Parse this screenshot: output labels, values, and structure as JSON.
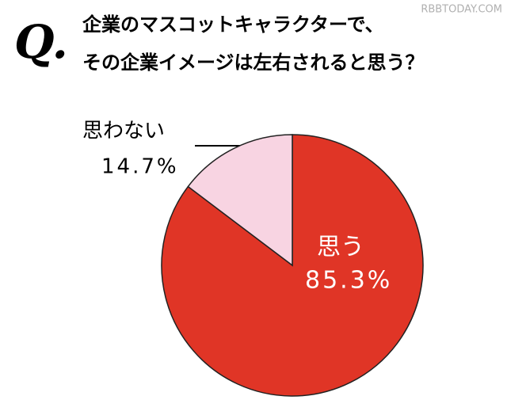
{
  "chart_data": {
    "type": "pie",
    "badge": "Q.",
    "title_lines": [
      "企業のマスコットキャラクターで、",
      "その企業イメージは左右されると思う？"
    ],
    "watermark": "RBBTODAY.COM",
    "categories": [
      "思う",
      "思わない"
    ],
    "values": [
      85.3,
      14.7
    ],
    "value_labels": [
      "85.3%",
      "14.7%"
    ],
    "colors": [
      "#e03526",
      "#f8d4e2"
    ],
    "start": "top",
    "direction": "clockwise"
  }
}
